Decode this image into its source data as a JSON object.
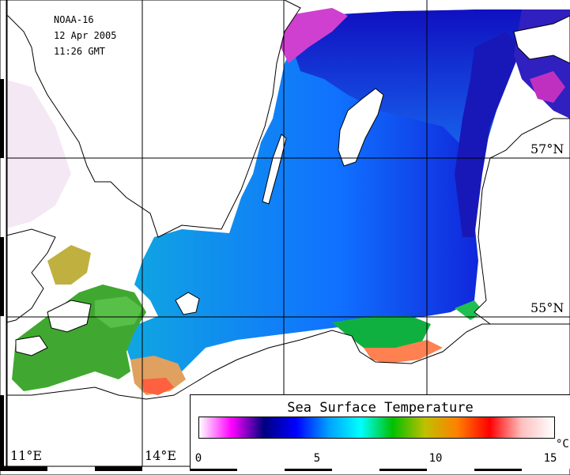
{
  "meta": {
    "satellite": "NOAA-16",
    "date": "12 Apr 2005",
    "time": "11:26 GMT"
  },
  "grid": {
    "lat_labels": [
      "57°N",
      "55°N"
    ],
    "lon_labels": [
      "11°E",
      "14°E"
    ]
  },
  "legend": {
    "title": "Sea Surface Temperature",
    "unit": "°C",
    "min": 0,
    "max": 15,
    "ticks": [
      "0",
      "5",
      "10",
      "15"
    ],
    "colors": [
      "#ffffff",
      "#ff00ff",
      "#000080",
      "#0000ff",
      "#00a0ff",
      "#00ffff",
      "#00c000",
      "#c0c000",
      "#ff8000",
      "#ff0000",
      "#ffc0c0",
      "#ffffff"
    ]
  },
  "colors": {
    "land": "#ffffff",
    "coast": "#000000",
    "sea_cold": "#0000c8",
    "sea_mid": "#1080ff",
    "sea_warm": "#20c0c0",
    "coast_warm": "#00b040",
    "coast_hot": "#ff8030"
  }
}
